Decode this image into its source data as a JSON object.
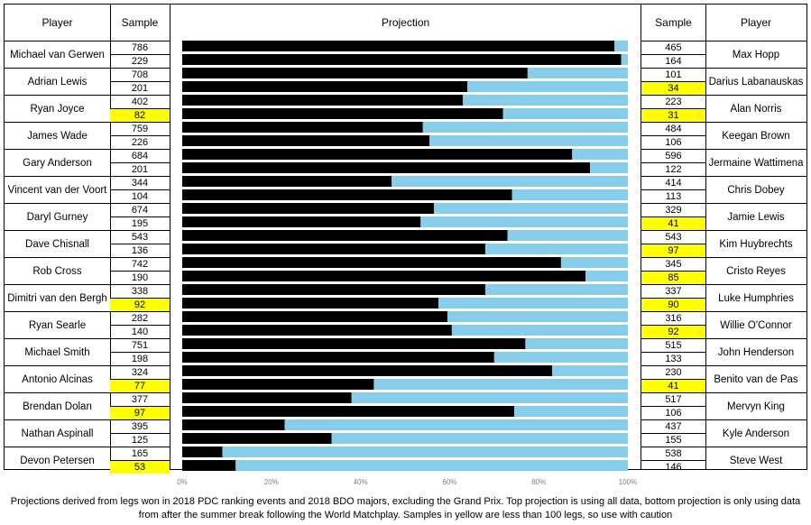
{
  "chart_data": {
    "type": "bar",
    "title": "Projection",
    "x_ticks": [
      "0%",
      "20%",
      "40%",
      "60%",
      "80%",
      "100%"
    ],
    "xlim": [
      0,
      100
    ],
    "left_headers": {
      "player": "Player",
      "sample": "Sample"
    },
    "right_headers": {
      "sample": "Sample",
      "player": "Player"
    },
    "matches": [
      {
        "left": {
          "player": "Michael van Gerwen",
          "samples": [
            786,
            229
          ]
        },
        "right": {
          "player": "Max Hopp",
          "samples": [
            465,
            164
          ]
        },
        "projections": [
          97,
          98.5
        ]
      },
      {
        "left": {
          "player": "Adrian Lewis",
          "samples": [
            708,
            201
          ]
        },
        "right": {
          "player": "Darius Labanauskas",
          "samples": [
            101,
            34
          ]
        },
        "projections": [
          77.5,
          64
        ]
      },
      {
        "left": {
          "player": "Ryan Joyce",
          "samples": [
            402,
            82
          ]
        },
        "right": {
          "player": "Alan Norris",
          "samples": [
            223,
            31
          ]
        },
        "projections": [
          63,
          72
        ]
      },
      {
        "left": {
          "player": "James Wade",
          "samples": [
            759,
            226
          ]
        },
        "right": {
          "player": "Keegan Brown",
          "samples": [
            484,
            106
          ]
        },
        "projections": [
          54,
          55.5
        ]
      },
      {
        "left": {
          "player": "Gary Anderson",
          "samples": [
            684,
            201
          ]
        },
        "right": {
          "player": "Jermaine Wattimena",
          "samples": [
            596,
            122
          ]
        },
        "projections": [
          87.5,
          91.5
        ]
      },
      {
        "left": {
          "player": "Vincent van der Voort",
          "samples": [
            344,
            104
          ]
        },
        "right": {
          "player": "Chris Dobey",
          "samples": [
            414,
            113
          ]
        },
        "projections": [
          47,
          74
        ]
      },
      {
        "left": {
          "player": "Daryl Gurney",
          "samples": [
            674,
            195
          ]
        },
        "right": {
          "player": "Jamie Lewis",
          "samples": [
            329,
            41
          ]
        },
        "projections": [
          56.5,
          53.5
        ]
      },
      {
        "left": {
          "player": "Dave Chisnall",
          "samples": [
            543,
            136
          ]
        },
        "right": {
          "player": "Kim Huybrechts",
          "samples": [
            543,
            97
          ]
        },
        "projections": [
          73,
          68
        ]
      },
      {
        "left": {
          "player": "Rob Cross",
          "samples": [
            742,
            190
          ]
        },
        "right": {
          "player": "Cristo Reyes",
          "samples": [
            345,
            85
          ]
        },
        "projections": [
          85,
          90.5
        ]
      },
      {
        "left": {
          "player": "Dimitri van den Bergh",
          "samples": [
            338,
            92
          ]
        },
        "right": {
          "player": "Luke Humphries",
          "samples": [
            337,
            90
          ]
        },
        "projections": [
          68,
          57.5
        ]
      },
      {
        "left": {
          "player": "Ryan Searle",
          "samples": [
            282,
            140
          ]
        },
        "right": {
          "player": "Willie O'Connor",
          "samples": [
            316,
            92
          ]
        },
        "projections": [
          59.5,
          60.5
        ]
      },
      {
        "left": {
          "player": "Michael Smith",
          "samples": [
            751,
            198
          ]
        },
        "right": {
          "player": "John Henderson",
          "samples": [
            515,
            133
          ]
        },
        "projections": [
          77,
          70
        ]
      },
      {
        "left": {
          "player": "Antonio Alcinas",
          "samples": [
            324,
            77
          ]
        },
        "right": {
          "player": "Benito van de Pas",
          "samples": [
            230,
            41
          ]
        },
        "projections": [
          83,
          43
        ]
      },
      {
        "left": {
          "player": "Brendan Dolan",
          "samples": [
            377,
            97
          ]
        },
        "right": {
          "player": "Mervyn King",
          "samples": [
            517,
            106
          ]
        },
        "projections": [
          38,
          74.5
        ]
      },
      {
        "left": {
          "player": "Nathan Aspinall",
          "samples": [
            395,
            125
          ]
        },
        "right": {
          "player": "Kyle Anderson",
          "samples": [
            437,
            155
          ]
        },
        "projections": [
          23,
          33.5
        ]
      },
      {
        "left": {
          "player": "Devon Petersen",
          "samples": [
            165,
            53
          ]
        },
        "right": {
          "player": "Steve West",
          "samples": [
            538,
            146
          ]
        },
        "projections": [
          9,
          12
        ]
      }
    ],
    "low_sample_threshold": 100,
    "colors": {
      "left_bar": "#000000",
      "right_bar": "#87ceeb",
      "low_sample_highlight": "#ffff00"
    }
  },
  "caption": {
    "line1": "Projections derived from legs won in 2018 PDC ranking events and 2018 BDO majors, excluding the Grand Prix. Top projection is using all data, bottom projection is only using data",
    "line2": "from after the summer break following the World Matchplay. Samples in yellow are less than 100 legs, so use with caution"
  }
}
